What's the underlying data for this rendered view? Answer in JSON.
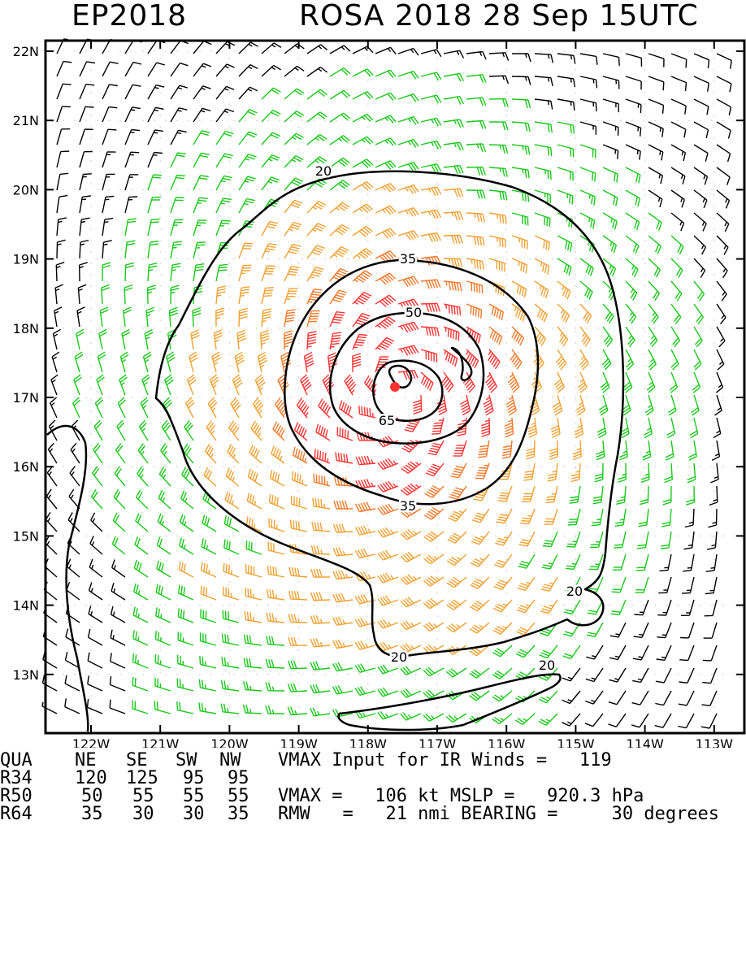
{
  "header": {
    "basin_id": "EP2018",
    "storm_title": "ROSA 2018 28 Sep 15UTC"
  },
  "map": {
    "lat_labels": [
      "22N",
      "21N",
      "20N",
      "19N",
      "18N",
      "17N",
      "16N",
      "15N",
      "14N",
      "13N"
    ],
    "lon_labels": [
      "122W",
      "121W",
      "120W",
      "119W",
      "118W",
      "117W",
      "116W",
      "115W",
      "114W",
      "113W"
    ],
    "contour_labels": [
      "20",
      "35",
      "50",
      "65",
      "35",
      "20",
      "20",
      "20"
    ],
    "colors": {
      "calm": "#000000",
      "gale": "#19c819",
      "storm": "#f0a030",
      "strong": "#f07828",
      "hurricane": "#ff3232",
      "center": "#ff3232"
    }
  },
  "footer": {
    "quadrant_header": {
      "label": "QUA",
      "cols": [
        "NE",
        "SE",
        "SW",
        "NW"
      ]
    },
    "radii": [
      {
        "label": "R34",
        "values": [
          "120",
          "125",
          "95",
          "95"
        ]
      },
      {
        "label": "R50",
        "values": [
          "50",
          "55",
          "55",
          "55"
        ]
      },
      {
        "label": "R64",
        "values": [
          "35",
          "30",
          "30",
          "35"
        ]
      }
    ],
    "notes": [
      "VMAX Input for IR Winds =   119",
      "VMAX =   106 kt MSLP =   920.3 hPa",
      "RMW   =   21 nmi BEARING =     30 degrees"
    ]
  }
}
